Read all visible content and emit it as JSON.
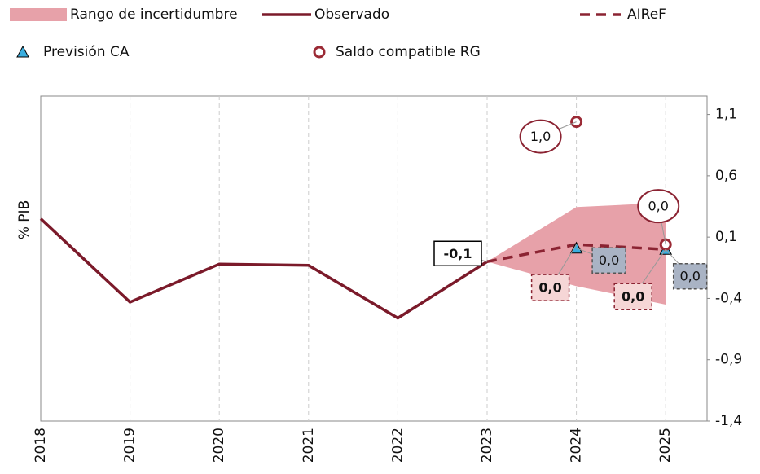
{
  "chart_data": {
    "type": "line",
    "y_axis_label": "% PIB",
    "categories": [
      "2018",
      "2019",
      "2020",
      "2021",
      "2022",
      "2023",
      "2024",
      "2025"
    ],
    "ylim": [
      -1.4,
      1.25
    ],
    "yticks": [
      {
        "value": 1.1,
        "label": "1,1"
      },
      {
        "value": 0.6,
        "label": "0,6"
      },
      {
        "value": 0.1,
        "label": "0,1"
      },
      {
        "value": -0.4,
        "label": "-0,4"
      },
      {
        "value": -0.9,
        "label": "-0,9"
      },
      {
        "value": -1.4,
        "label": "-1,4"
      }
    ],
    "grid": true,
    "series": [
      {
        "name": "Rango de incertidumbre",
        "kind": "band",
        "color": "#e7a1a9",
        "lower": [
          null,
          null,
          null,
          null,
          null,
          -0.1,
          -0.3,
          -0.45
        ],
        "upper": [
          null,
          null,
          null,
          null,
          null,
          -0.1,
          0.345,
          0.38
        ]
      },
      {
        "name": "Observado",
        "kind": "line",
        "color": "#7b1a2a",
        "values": [
          0.25,
          -0.43,
          -0.12,
          -0.13,
          -0.56,
          -0.1,
          null,
          null
        ],
        "value_labels": [
          null,
          null,
          null,
          null,
          null,
          "-0,1",
          null,
          null
        ]
      },
      {
        "name": "AIReF",
        "kind": "dashed",
        "color": "#8b2332",
        "values": [
          null,
          null,
          null,
          null,
          null,
          -0.1,
          0.04,
          0.0
        ],
        "value_labels": [
          null,
          null,
          null,
          null,
          null,
          null,
          "0,0",
          "0,0"
        ]
      },
      {
        "name": "Previsión CA",
        "kind": "triangle",
        "color": "#3aaedf",
        "values": [
          null,
          null,
          null,
          null,
          null,
          null,
          0.01,
          0.0
        ],
        "value_labels": [
          null,
          null,
          null,
          null,
          null,
          null,
          "0,0",
          "0,0"
        ]
      },
      {
        "name": "Saldo compatible RG",
        "kind": "circle",
        "color": "#9b2a35",
        "values": [
          null,
          null,
          null,
          null,
          null,
          null,
          1.04,
          0.04
        ],
        "value_labels": [
          null,
          null,
          null,
          null,
          null,
          null,
          "1,0",
          "0,0"
        ]
      }
    ]
  }
}
